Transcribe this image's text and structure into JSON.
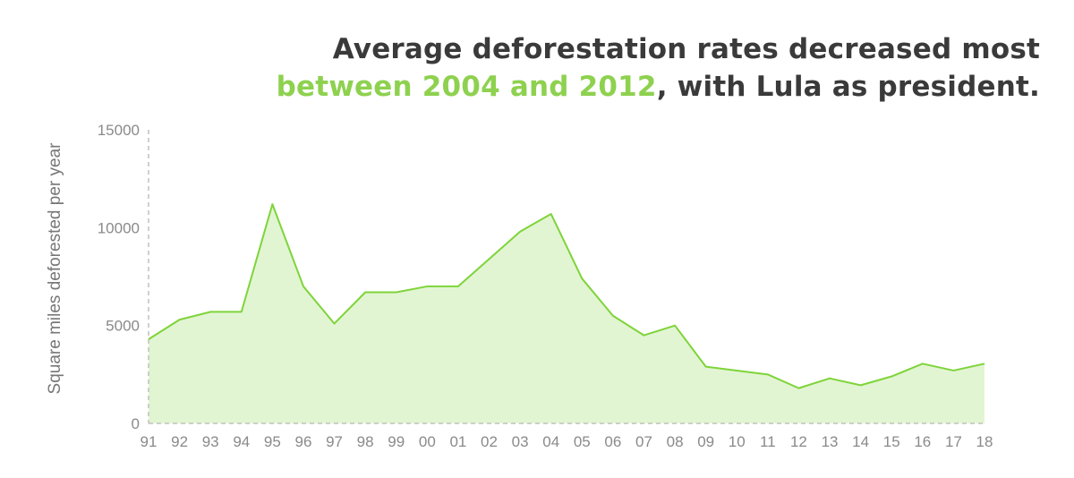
{
  "title": {
    "line1": "Average deforestation rates decreased most",
    "line2_highlight": "between 2004 and 2012",
    "line2_rest": ", with Lula as president."
  },
  "colors": {
    "title": "#3a3a3a",
    "highlight": "#8ed14f",
    "line": "#7ed43a",
    "fill": "#e2f5d2",
    "axis": "#c0c0c0",
    "tick_text": "#8a8a8a"
  },
  "chart_data": {
    "type": "area",
    "title": "Average deforestation rates decreased most between 2004 and 2012, with Lula as president.",
    "xlabel": "",
    "ylabel": "Square miles deforested per year",
    "categories": [
      "91",
      "92",
      "93",
      "94",
      "95",
      "96",
      "97",
      "98",
      "99",
      "00",
      "01",
      "02",
      "03",
      "04",
      "05",
      "06",
      "07",
      "08",
      "09",
      "10",
      "11",
      "12",
      "13",
      "14",
      "15",
      "16",
      "17",
      "18"
    ],
    "values": [
      4300,
      5300,
      5700,
      5700,
      11200,
      7000,
      5100,
      6700,
      6700,
      7000,
      7000,
      8400,
      9800,
      10700,
      7400,
      5500,
      4500,
      5000,
      2900,
      2700,
      2500,
      1800,
      2300,
      1950,
      2400,
      3050,
      2700,
      3050
    ],
    "ylim": [
      0,
      15000
    ],
    "yticks": [
      "0",
      "5000",
      "10000",
      "15000"
    ],
    "grid": false
  }
}
